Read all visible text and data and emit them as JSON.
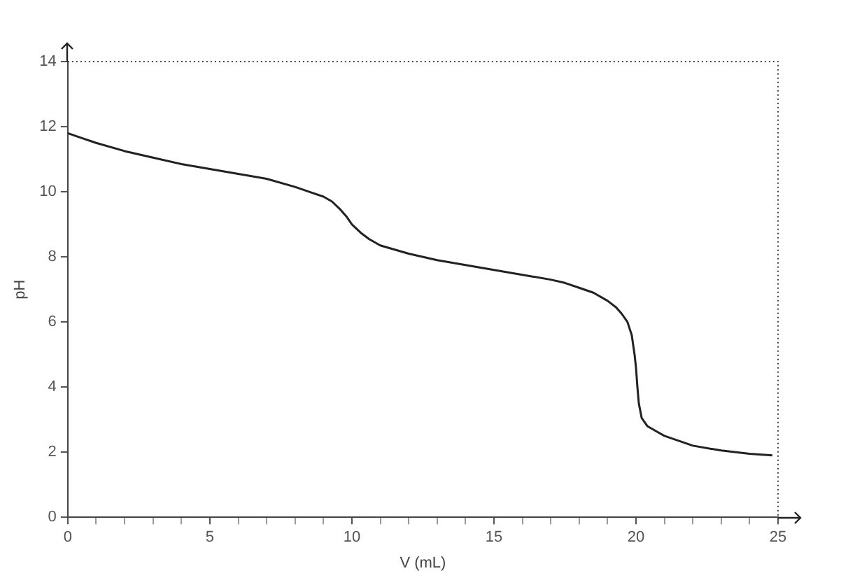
{
  "chart_data": {
    "type": "line",
    "xlabel": "V (mL)",
    "ylabel": "pH",
    "xlim": [
      0,
      25
    ],
    "xticks": [
      0,
      5,
      10,
      15,
      20,
      25
    ],
    "ylim": [
      0,
      14
    ],
    "yticks": [
      0,
      2,
      4,
      6,
      8,
      10,
      12,
      14
    ],
    "grid": false,
    "legend": false,
    "marker": "none",
    "line_style": "solid",
    "series": [
      {
        "color": "#222222",
        "x": [
          0,
          0.5,
          1,
          2,
          3,
          4,
          5,
          6,
          7,
          8,
          8.5,
          9,
          9.3,
          9.6,
          9.8,
          10,
          10.3,
          10.6,
          11,
          12,
          13,
          14,
          15,
          16,
          17,
          17.5,
          18,
          18.5,
          19,
          19.3,
          19.5,
          19.7,
          19.85,
          19.95,
          20,
          20.05,
          20.1,
          20.2,
          20.4,
          20.7,
          21,
          21.5,
          22,
          23,
          24,
          24.8
        ],
        "values": [
          11.8,
          11.65,
          11.5,
          11.25,
          11.05,
          10.85,
          10.7,
          10.55,
          10.4,
          10.15,
          10.0,
          9.85,
          9.7,
          9.45,
          9.25,
          9.0,
          8.75,
          8.55,
          8.35,
          8.1,
          7.9,
          7.75,
          7.6,
          7.45,
          7.3,
          7.2,
          7.05,
          6.9,
          6.65,
          6.45,
          6.25,
          6.0,
          5.6,
          5.0,
          4.6,
          4.0,
          3.5,
          3.05,
          2.8,
          2.65,
          2.5,
          2.35,
          2.2,
          2.05,
          1.95,
          1.9
        ]
      }
    ]
  }
}
